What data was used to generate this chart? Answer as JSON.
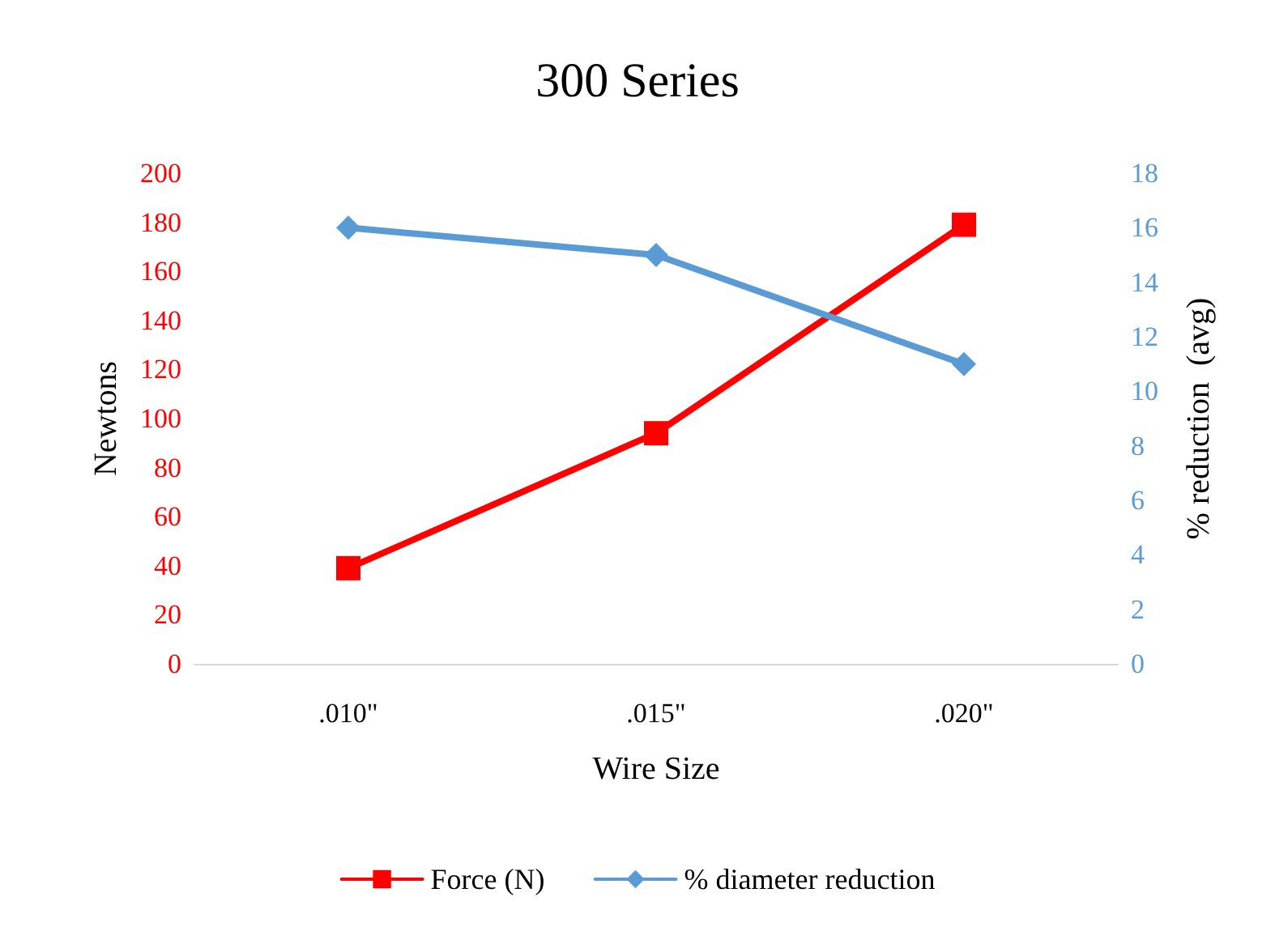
{
  "chart_data": {
    "type": "line",
    "title": "300 Series",
    "xlabel": "Wire Size",
    "ylabel": "Newtons",
    "y2label": "% reduction  (avg)",
    "categories": [
      ".010\"",
      ".015\"",
      ".020\""
    ],
    "series": [
      {
        "name": "Force (N)",
        "color": "#ff0000",
        "values": [
          39,
          94,
          179
        ],
        "marker": "square"
      },
      {
        "name": "% diameter reduction",
        "color": "#5b9bd5",
        "values": [
          16,
          15,
          11
        ],
        "axis": "y2",
        "marker": "diamond"
      }
    ],
    "ylim": [
      0,
      200
    ],
    "yticks": [
      0,
      20,
      40,
      60,
      80,
      100,
      120,
      140,
      160,
      180,
      200
    ],
    "y2lim": [
      0,
      18
    ],
    "y2ticks": [
      0,
      2,
      4,
      6,
      8,
      10,
      12,
      14,
      16,
      18
    ],
    "grid": false,
    "legend": "bottom",
    "line_style": "solid"
  }
}
